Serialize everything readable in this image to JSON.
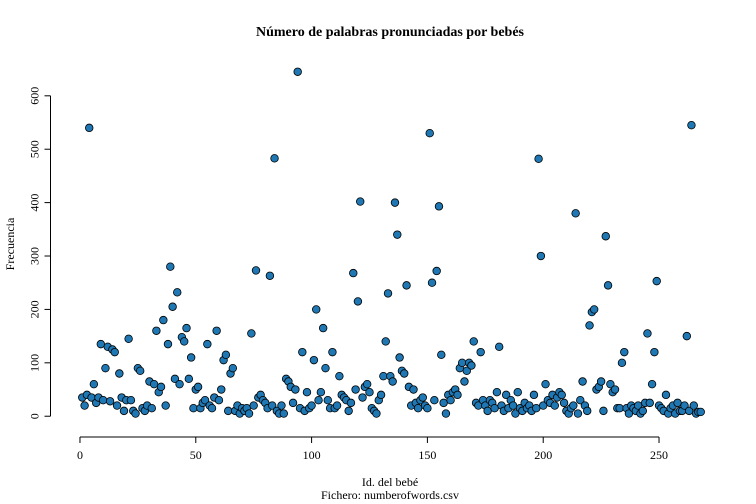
{
  "chart_data": {
    "type": "scatter",
    "title": "Número de palabras pronunciadas por bebés",
    "x_label": "Id. del bebé",
    "subtitle": "Fichero: numberofwords.csv",
    "y_label": "Frecuencia",
    "color": "#1f78b4",
    "xlim": [
      -9.7,
      278.7
    ],
    "ylim": [
      -25.8,
      670.8
    ],
    "xticks": [
      0,
      50,
      100,
      150,
      200,
      250
    ],
    "yticks": [
      0,
      100,
      200,
      300,
      400,
      500,
      600
    ],
    "x": [
      1,
      2,
      3,
      4,
      5,
      6,
      7,
      8,
      9,
      10,
      11,
      12,
      13,
      14,
      15,
      16,
      17,
      18,
      19,
      20,
      21,
      22,
      23,
      24,
      25,
      26,
      27,
      28,
      29,
      30,
      31,
      32,
      33,
      34,
      35,
      36,
      37,
      38,
      39,
      40,
      41,
      42,
      43,
      44,
      45,
      46,
      47,
      48,
      49,
      50,
      51,
      52,
      53,
      54,
      55,
      56,
      57,
      58,
      59,
      60,
      61,
      62,
      63,
      64,
      65,
      66,
      67,
      68,
      69,
      70,
      71,
      72,
      73,
      74,
      75,
      76,
      77,
      78,
      79,
      80,
      81,
      82,
      83,
      84,
      85,
      86,
      87,
      88,
      89,
      90,
      91,
      92,
      93,
      94,
      95,
      96,
      97,
      98,
      99,
      100,
      101,
      102,
      103,
      104,
      105,
      106,
      107,
      108,
      109,
      110,
      111,
      112,
      113,
      114,
      115,
      116,
      117,
      118,
      119,
      120,
      121,
      122,
      123,
      124,
      125,
      126,
      127,
      128,
      129,
      130,
      131,
      132,
      133,
      134,
      135,
      136,
      137,
      138,
      139,
      140,
      141,
      142,
      143,
      144,
      145,
      146,
      147,
      148,
      149,
      150,
      151,
      152,
      153,
      154,
      155,
      156,
      157,
      158,
      159,
      160,
      161,
      162,
      163,
      164,
      165,
      166,
      167,
      168,
      169,
      170,
      171,
      172,
      173,
      174,
      175,
      176,
      177,
      178,
      179,
      180,
      181,
      182,
      183,
      184,
      185,
      186,
      187,
      188,
      189,
      190,
      191,
      192,
      193,
      194,
      195,
      196,
      197,
      198,
      199,
      200,
      201,
      202,
      203,
      204,
      205,
      206,
      207,
      208,
      209,
      210,
      211,
      212,
      213,
      214,
      215,
      216,
      217,
      218,
      219,
      220,
      221,
      222,
      223,
      224,
      225,
      226,
      227,
      228,
      229,
      230,
      231,
      232,
      233,
      234,
      235,
      236,
      237,
      238,
      239,
      240,
      241,
      242,
      243,
      244,
      245,
      246,
      247,
      248,
      249,
      250,
      251,
      252,
      253,
      254,
      255,
      256,
      257,
      258,
      259,
      260,
      261,
      262,
      263,
      264,
      265,
      266,
      267,
      268
    ],
    "values": [
      35,
      20,
      40,
      540,
      35,
      60,
      25,
      35,
      135,
      30,
      90,
      130,
      28,
      125,
      120,
      20,
      80,
      35,
      10,
      30,
      145,
      30,
      10,
      5,
      90,
      85,
      15,
      10,
      20,
      65,
      15,
      60,
      160,
      45,
      55,
      180,
      20,
      135,
      280,
      205,
      70,
      232,
      60,
      148,
      140,
      165,
      70,
      110,
      15,
      50,
      55,
      15,
      25,
      30,
      135,
      20,
      15,
      35,
      160,
      30,
      50,
      105,
      115,
      10,
      80,
      90,
      10,
      20,
      5,
      15,
      10,
      15,
      5,
      155,
      20,
      273,
      35,
      40,
      30,
      25,
      15,
      263,
      20,
      483,
      10,
      5,
      20,
      5,
      70,
      65,
      55,
      25,
      50,
      645,
      15,
      120,
      10,
      45,
      15,
      20,
      105,
      200,
      30,
      45,
      165,
      90,
      30,
      15,
      120,
      15,
      20,
      75,
      40,
      35,
      30,
      10,
      25,
      268,
      50,
      215,
      402,
      35,
      55,
      60,
      45,
      15,
      10,
      5,
      30,
      40,
      75,
      140,
      230,
      75,
      65,
      400,
      340,
      110,
      85,
      80,
      245,
      55,
      20,
      50,
      25,
      15,
      30,
      35,
      20,
      15,
      530,
      250,
      30,
      272,
      393,
      115,
      25,
      5,
      40,
      30,
      45,
      50,
      40,
      90,
      100,
      65,
      85,
      100,
      95,
      140,
      25,
      20,
      120,
      30,
      20,
      10,
      30,
      25,
      15,
      45,
      130,
      20,
      10,
      40,
      15,
      30,
      20,
      5,
      45,
      15,
      10,
      25,
      15,
      20,
      10,
      40,
      15,
      482,
      300,
      20,
      60,
      30,
      25,
      40,
      20,
      35,
      45,
      40,
      25,
      10,
      5,
      15,
      20,
      380,
      5,
      30,
      65,
      20,
      10,
      170,
      195,
      200,
      50,
      55,
      65,
      10,
      337,
      245,
      60,
      45,
      50,
      15,
      15,
      100,
      120,
      15,
      5,
      20,
      15,
      10,
      20,
      5,
      10,
      25,
      155,
      25,
      60,
      120,
      253,
      20,
      15,
      10,
      40,
      5,
      15,
      20,
      5,
      25,
      10,
      10,
      20,
      150,
      10,
      545,
      20,
      5,
      8,
      8
    ]
  }
}
